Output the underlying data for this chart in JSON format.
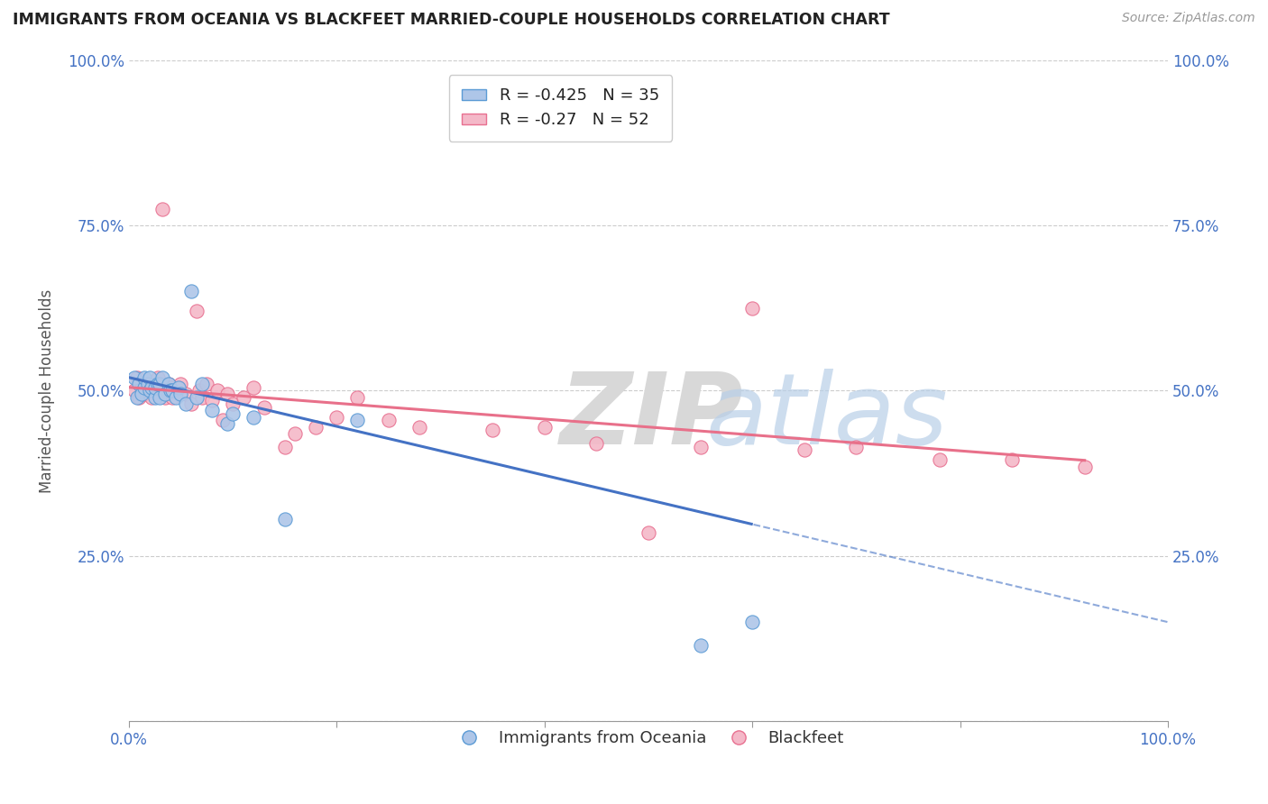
{
  "title": "IMMIGRANTS FROM OCEANIA VS BLACKFEET MARRIED-COUPLE HOUSEHOLDS CORRELATION CHART",
  "source": "Source: ZipAtlas.com",
  "ylabel": "Married-couple Households",
  "xlim": [
    0.0,
    1.0
  ],
  "ylim": [
    0.0,
    1.0
  ],
  "ytick_positions": [
    0.0,
    0.25,
    0.5,
    0.75,
    1.0
  ],
  "grid_color": "#cccccc",
  "blue_R": -0.425,
  "blue_N": 35,
  "pink_R": -0.27,
  "pink_N": 52,
  "blue_scatter_color": "#aec6e8",
  "blue_scatter_edge": "#5b9bd5",
  "pink_scatter_color": "#f4b8c8",
  "pink_scatter_edge": "#e87090",
  "blue_line_color": "#4472c4",
  "pink_line_color": "#e8708a",
  "blue_x": [
    0.005,
    0.008,
    0.01,
    0.012,
    0.015,
    0.015,
    0.018,
    0.02,
    0.02,
    0.022,
    0.025,
    0.025,
    0.028,
    0.03,
    0.03,
    0.032,
    0.035,
    0.038,
    0.04,
    0.042,
    0.045,
    0.048,
    0.05,
    0.055,
    0.06,
    0.065,
    0.07,
    0.08,
    0.095,
    0.1,
    0.12,
    0.15,
    0.22,
    0.55,
    0.6
  ],
  "blue_y": [
    0.52,
    0.49,
    0.51,
    0.495,
    0.505,
    0.52,
    0.51,
    0.5,
    0.52,
    0.505,
    0.49,
    0.505,
    0.51,
    0.49,
    0.51,
    0.52,
    0.495,
    0.51,
    0.5,
    0.5,
    0.49,
    0.505,
    0.495,
    0.48,
    0.65,
    0.49,
    0.51,
    0.47,
    0.45,
    0.465,
    0.46,
    0.305,
    0.455,
    0.115,
    0.15
  ],
  "pink_x": [
    0.005,
    0.008,
    0.01,
    0.012,
    0.015,
    0.018,
    0.02,
    0.022,
    0.025,
    0.025,
    0.028,
    0.03,
    0.032,
    0.035,
    0.038,
    0.04,
    0.042,
    0.045,
    0.048,
    0.05,
    0.055,
    0.06,
    0.065,
    0.068,
    0.07,
    0.075,
    0.08,
    0.085,
    0.09,
    0.095,
    0.1,
    0.11,
    0.12,
    0.13,
    0.15,
    0.16,
    0.18,
    0.2,
    0.22,
    0.25,
    0.28,
    0.35,
    0.4,
    0.45,
    0.5,
    0.55,
    0.6,
    0.65,
    0.7,
    0.78,
    0.85,
    0.92
  ],
  "pink_y": [
    0.5,
    0.52,
    0.49,
    0.51,
    0.495,
    0.51,
    0.505,
    0.49,
    0.51,
    0.5,
    0.52,
    0.495,
    0.775,
    0.49,
    0.51,
    0.505,
    0.49,
    0.5,
    0.505,
    0.51,
    0.495,
    0.48,
    0.62,
    0.5,
    0.49,
    0.51,
    0.485,
    0.5,
    0.455,
    0.495,
    0.48,
    0.49,
    0.505,
    0.475,
    0.415,
    0.435,
    0.445,
    0.46,
    0.49,
    0.455,
    0.445,
    0.44,
    0.445,
    0.42,
    0.285,
    0.415,
    0.625,
    0.41,
    0.415,
    0.395,
    0.395,
    0.385
  ]
}
